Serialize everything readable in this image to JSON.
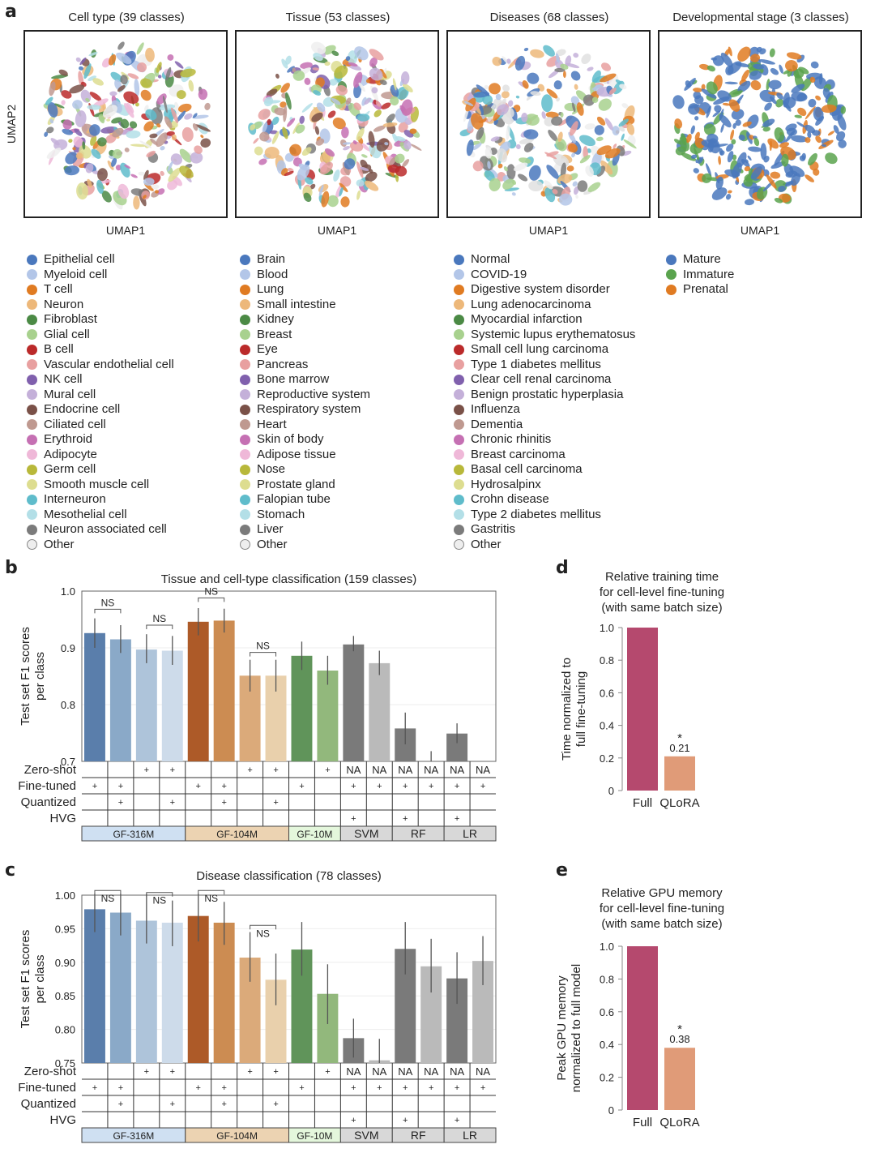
{
  "panel_a": {
    "label": "a",
    "ylabel": "UMAP2",
    "xlabel": "UMAP1",
    "plots": [
      {
        "title": "Cell type (39 classes)",
        "palette": [
          "#4a78bd",
          "#b3c6e8",
          "#e07b22",
          "#edb87a",
          "#4b8a45",
          "#a8d18e",
          "#bb2a2a",
          "#e8a0a0",
          "#8060ad",
          "#c4b0d9",
          "#7a5148",
          "#bf9990",
          "#c570b3",
          "#efb8d8",
          "#b8b83a",
          "#dddd90",
          "#5fbccb",
          "#b3dfe7",
          "#7b7b7b",
          "#eeeeee"
        ]
      },
      {
        "title": "Tissue (53 classes)",
        "palette": [
          "#b3c6e8",
          "#4a78bd",
          "#e07b22",
          "#edb87a",
          "#4b8a45",
          "#a8d18e",
          "#bb2a2a",
          "#e8a0a0",
          "#8060ad",
          "#c4b0d9",
          "#7a5148",
          "#bf9990",
          "#c570b3",
          "#efb8d8",
          "#b8b83a",
          "#dddd90",
          "#5fbccb",
          "#b3dfe7",
          "#7b7b7b",
          "#eeeeee"
        ]
      },
      {
        "title": "Diseases (68 classes)",
        "palette": [
          "#4a78bd",
          "#b3c6e8",
          "#eeeeee",
          "#e0e0e0",
          "#edb87a",
          "#a8d18e",
          "#e8a0a0",
          "#c4b0d9",
          "#5fbccb",
          "#7b7b7b",
          "#e07b22"
        ]
      },
      {
        "title": "Developmental stage (3 classes)",
        "palette": [
          "#4a78bd",
          "#4a78bd",
          "#4a78bd",
          "#5aa34e",
          "#e07b22"
        ]
      }
    ],
    "legends": [
      {
        "items": [
          {
            "label": "Epithelial cell",
            "color": "#4a78bd"
          },
          {
            "label": "Myeloid cell",
            "color": "#b3c6e8"
          },
          {
            "label": "T cell",
            "color": "#e07b22"
          },
          {
            "label": "Neuron",
            "color": "#edb87a"
          },
          {
            "label": "Fibroblast",
            "color": "#4b8a45"
          },
          {
            "label": "Glial cell",
            "color": "#a8d18e"
          },
          {
            "label": "B cell",
            "color": "#bb2a2a"
          },
          {
            "label": "Vascular endothelial cell",
            "color": "#e8a0a0"
          },
          {
            "label": "NK cell",
            "color": "#8060ad"
          },
          {
            "label": "Mural cell",
            "color": "#c4b0d9"
          },
          {
            "label": "Endocrine cell",
            "color": "#7a5148"
          },
          {
            "label": "Ciliated cell",
            "color": "#bf9990"
          },
          {
            "label": "Erythroid",
            "color": "#c570b3"
          },
          {
            "label": "Adipocyte",
            "color": "#efb8d8"
          },
          {
            "label": "Germ cell",
            "color": "#b8b83a"
          },
          {
            "label": "Smooth muscle cell",
            "color": "#dddd90"
          },
          {
            "label": "Interneuron",
            "color": "#5fbccb"
          },
          {
            "label": "Mesothelial cell",
            "color": "#b3dfe7"
          },
          {
            "label": "Neuron associated cell",
            "color": "#7b7b7b"
          },
          {
            "label": "Other",
            "color": "#eeeeee"
          }
        ]
      },
      {
        "items": [
          {
            "label": "Brain",
            "color": "#4a78bd"
          },
          {
            "label": "Blood",
            "color": "#b3c6e8"
          },
          {
            "label": "Lung",
            "color": "#e07b22"
          },
          {
            "label": "Small intestine",
            "color": "#edb87a"
          },
          {
            "label": "Kidney",
            "color": "#4b8a45"
          },
          {
            "label": "Breast",
            "color": "#a8d18e"
          },
          {
            "label": "Eye",
            "color": "#bb2a2a"
          },
          {
            "label": "Pancreas",
            "color": "#e8a0a0"
          },
          {
            "label": "Bone marrow",
            "color": "#8060ad"
          },
          {
            "label": "Reproductive system",
            "color": "#c4b0d9"
          },
          {
            "label": "Respiratory system",
            "color": "#7a5148"
          },
          {
            "label": "Heart",
            "color": "#bf9990"
          },
          {
            "label": "Skin of body",
            "color": "#c570b3"
          },
          {
            "label": "Adipose tissue",
            "color": "#efb8d8"
          },
          {
            "label": "Nose",
            "color": "#b8b83a"
          },
          {
            "label": "Prostate gland",
            "color": "#dddd90"
          },
          {
            "label": "Falopian tube",
            "color": "#5fbccb"
          },
          {
            "label": "Stomach",
            "color": "#b3dfe7"
          },
          {
            "label": "Liver",
            "color": "#7b7b7b"
          },
          {
            "label": "Other",
            "color": "#eeeeee"
          }
        ]
      },
      {
        "items": [
          {
            "label": "Normal",
            "color": "#4a78bd"
          },
          {
            "label": "COVID-19",
            "color": "#b3c6e8"
          },
          {
            "label": "Digestive system disorder",
            "color": "#e07b22"
          },
          {
            "label": "Lung adenocarcinoma",
            "color": "#edb87a"
          },
          {
            "label": "Myocardial infarction",
            "color": "#4b8a45"
          },
          {
            "label": "Systemic lupus erythematosus",
            "color": "#a8d18e"
          },
          {
            "label": "Small cell lung carcinoma",
            "color": "#bb2a2a"
          },
          {
            "label": "Type 1 diabetes mellitus",
            "color": "#e8a0a0"
          },
          {
            "label": "Clear cell renal carcinoma",
            "color": "#8060ad"
          },
          {
            "label": "Benign prostatic hyperplasia",
            "color": "#c4b0d9"
          },
          {
            "label": "Influenza",
            "color": "#7a5148"
          },
          {
            "label": "Dementia",
            "color": "#bf9990"
          },
          {
            "label": "Chronic rhinitis",
            "color": "#c570b3"
          },
          {
            "label": "Breast carcinoma",
            "color": "#efb8d8"
          },
          {
            "label": "Basal cell carcinoma",
            "color": "#b8b83a"
          },
          {
            "label": "Hydrosalpinx",
            "color": "#dddd90"
          },
          {
            "label": "Crohn disease",
            "color": "#5fbccb"
          },
          {
            "label": "Type 2 diabetes mellitus",
            "color": "#b3dfe7"
          },
          {
            "label": "Gastritis",
            "color": "#7b7b7b"
          },
          {
            "label": "Other",
            "color": "#eeeeee"
          }
        ]
      },
      {
        "items": [
          {
            "label": "Mature",
            "color": "#4a78bd"
          },
          {
            "label": "Immature",
            "color": "#5aa34e"
          },
          {
            "label": "Prenatal",
            "color": "#e07b22"
          }
        ]
      }
    ]
  },
  "table_rows": [
    "Zero-shot",
    "Fine-tuned",
    "Quantized",
    "HVG"
  ],
  "conditions": [
    {
      "zs": "",
      "ft": "+",
      "q": "",
      "hvg": ""
    },
    {
      "zs": "",
      "ft": "+",
      "q": "+",
      "hvg": ""
    },
    {
      "zs": "+",
      "ft": "",
      "q": "",
      "hvg": ""
    },
    {
      "zs": "+",
      "ft": "",
      "q": "+",
      "hvg": ""
    },
    {
      "zs": "",
      "ft": "+",
      "q": "",
      "hvg": ""
    },
    {
      "zs": "",
      "ft": "+",
      "q": "+",
      "hvg": ""
    },
    {
      "zs": "+",
      "ft": "",
      "q": "",
      "hvg": ""
    },
    {
      "zs": "+",
      "ft": "",
      "q": "+",
      "hvg": ""
    },
    {
      "zs": "",
      "ft": "+",
      "q": "",
      "hvg": ""
    },
    {
      "zs": "+",
      "ft": "",
      "q": "",
      "hvg": ""
    },
    {
      "zs": "NA",
      "ft": "+",
      "q": "",
      "hvg": "+"
    },
    {
      "zs": "NA",
      "ft": "+",
      "q": "",
      "hvg": ""
    },
    {
      "zs": "NA",
      "ft": "+",
      "q": "",
      "hvg": "+"
    },
    {
      "zs": "NA",
      "ft": "+",
      "q": "",
      "hvg": ""
    },
    {
      "zs": "NA",
      "ft": "+",
      "q": "",
      "hvg": "+"
    },
    {
      "zs": "NA",
      "ft": "+",
      "q": "",
      "hvg": ""
    }
  ],
  "model_groups": [
    {
      "label": "GF-316M",
      "span": 4,
      "color": "#cfe0f2"
    },
    {
      "label": "GF-104M",
      "span": 4,
      "color": "#ecd3b2"
    },
    {
      "label": "GF-10M",
      "span": 2,
      "color": "#e4f7dc"
    },
    {
      "label": "SVM",
      "span": 2,
      "color": "#d8d8d8"
    },
    {
      "label": "RF",
      "span": 2,
      "color": "#d8d8d8"
    },
    {
      "label": "LR",
      "span": 2,
      "color": "#d8d8d8"
    }
  ],
  "bar_colors": [
    "#5a7eab",
    "#8aa9c8",
    "#aec4da",
    "#cddbea",
    "#ad5a28",
    "#cc8c52",
    "#dbaa7a",
    "#e9d0ac",
    "#60945a",
    "#92b87c",
    "#7a7a7a",
    "#bababa",
    "#7a7a7a",
    "#bababa",
    "#7a7a7a",
    "#bababa"
  ],
  "chart_data": [
    {
      "panel": "b",
      "type": "bar",
      "title": "Tissue and cell-type classification (159 classes)",
      "ylabel": "Test set F1 scores per class",
      "ylim": [
        0.7,
        1.0
      ],
      "yticks": [
        "0.7",
        "0.8",
        "0.9",
        "1.0"
      ],
      "ytick_values": [
        0.7,
        0.8,
        0.9,
        1.0
      ],
      "values": [
        0.926,
        0.915,
        0.897,
        0.895,
        0.946,
        0.948,
        0.851,
        0.851,
        0.886,
        0.86,
        0.906,
        0.873,
        0.758,
        0.7,
        0.749,
        null
      ],
      "err_low": [
        0.9,
        0.891,
        0.873,
        0.87,
        0.922,
        0.927,
        0.823,
        0.823,
        0.861,
        0.835,
        0.894,
        0.852,
        0.73,
        0.7,
        0.732,
        null
      ],
      "err_high": [
        0.952,
        0.94,
        0.924,
        0.921,
        0.97,
        0.969,
        0.879,
        0.879,
        0.911,
        0.886,
        0.921,
        0.895,
        0.786,
        0.718,
        0.767,
        null
      ],
      "significance": [
        {
          "pair": [
            0,
            1
          ],
          "label": "NS",
          "level": 0.968
        },
        {
          "pair": [
            2,
            3
          ],
          "label": "NS",
          "level": 0.94
        },
        {
          "pair": [
            4,
            5
          ],
          "label": "NS",
          "level": 0.988
        },
        {
          "pair": [
            6,
            7
          ],
          "label": "NS",
          "level": 0.892
        }
      ],
      "grid": true
    },
    {
      "panel": "c",
      "type": "bar",
      "title": "Disease classification (78 classes)",
      "ylabel": "Test set F1 scores per class",
      "ylim": [
        0.75,
        1.0
      ],
      "yticks": [
        "0.75",
        "0.80",
        "0.85",
        "0.90",
        "0.95",
        "1.00"
      ],
      "ytick_values": [
        0.75,
        0.8,
        0.85,
        0.9,
        0.95,
        1.0
      ],
      "values": [
        0.979,
        0.974,
        0.962,
        0.959,
        0.969,
        0.959,
        0.907,
        0.874,
        0.919,
        0.853,
        0.787,
        0.754,
        0.92,
        0.894,
        0.876,
        0.902
      ],
      "err_low": [
        0.945,
        0.94,
        0.928,
        0.924,
        0.931,
        0.926,
        0.871,
        0.836,
        0.88,
        0.808,
        0.758,
        0.75,
        0.882,
        0.855,
        0.838,
        0.866
      ],
      "err_high": [
        1.002,
        1.002,
        1.002,
        0.992,
        1.002,
        0.99,
        0.945,
        0.913,
        0.96,
        0.897,
        0.816,
        0.786,
        0.96,
        0.935,
        0.915,
        0.939
      ],
      "significance": [
        {
          "pair": [
            0,
            1
          ],
          "label": "NS",
          "level": 1.007
        },
        {
          "pair": [
            2,
            3
          ],
          "label": "NS",
          "level": 1.004
        },
        {
          "pair": [
            4,
            5
          ],
          "label": "NS",
          "level": 1.007
        },
        {
          "pair": [
            6,
            7
          ],
          "label": "NS",
          "level": 0.955
        }
      ],
      "grid": true
    },
    {
      "panel": "d",
      "type": "bar",
      "title": "Relative training time for cell-level fine-tuning (with same batch size)",
      "title_lines": [
        "Relative training time",
        "for cell-level fine-tuning",
        "(with same batch size)"
      ],
      "ylabel_lines": [
        "Time normalized to",
        "full fine-tuning"
      ],
      "categories": [
        "Full",
        "QLoRA"
      ],
      "values": [
        1.0,
        0.21
      ],
      "colors": [
        "#b5496e",
        "#e09b78"
      ],
      "annotation": {
        "bar": 1,
        "star": "*",
        "value_label": "0.21"
      },
      "ylim": [
        0,
        1.0
      ],
      "yticks": [
        "0",
        "0.2",
        "0.4",
        "0.6",
        "0.8",
        "1.0"
      ],
      "ytick_values": [
        0,
        0.2,
        0.4,
        0.6,
        0.8,
        1.0
      ]
    },
    {
      "panel": "e",
      "type": "bar",
      "title": "Relative GPU memory for cell-level fine-tuning (with same batch size)",
      "title_lines": [
        "Relative GPU memory",
        "for cell-level fine-tuning",
        "(with same batch size)"
      ],
      "ylabel_lines": [
        "Peak GPU memory",
        "normalized to full model"
      ],
      "categories": [
        "Full",
        "QLoRA"
      ],
      "values": [
        1.0,
        0.38
      ],
      "colors": [
        "#b5496e",
        "#e09b78"
      ],
      "annotation": {
        "bar": 1,
        "star": "*",
        "value_label": "0.38"
      },
      "ylim": [
        0,
        1.0
      ],
      "yticks": [
        "0",
        "0.2",
        "0.4",
        "0.6",
        "0.8",
        "1.0"
      ],
      "ytick_values": [
        0,
        0.2,
        0.4,
        0.6,
        0.8,
        1.0
      ]
    }
  ]
}
